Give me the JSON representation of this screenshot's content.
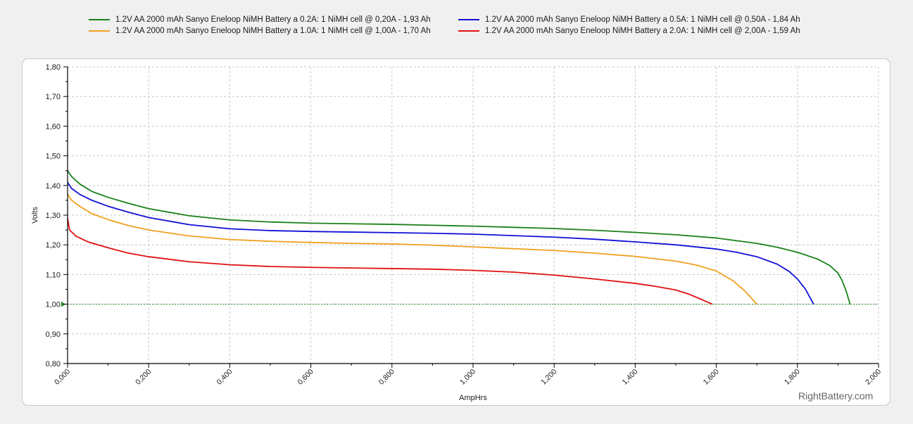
{
  "legend": [
    {
      "label": "1.2V AA 2000 mAh Sanyo Eneloop NiMH Battery a 0.2A: 1 NiMH cell @ 0,20A - 1,93 Ah",
      "color": "#1a801a"
    },
    {
      "label": "1.2V AA 2000 mAh Sanyo Eneloop NiMH Battery a 0.5A: 1 NiMH cell @ 0,50A - 1,84 Ah",
      "color": "#1010d8"
    },
    {
      "label": "1.2V AA 2000 mAh Sanyo Eneloop NiMH Battery a 1.0A: 1 NiMH cell @ 1,00A - 1,70 Ah",
      "color": "#f0a020"
    },
    {
      "label": "1.2V AA 2000 mAh Sanyo Eneloop NiMH Battery a 2.0A: 1 NiMH cell @ 2,00A - 1,59 Ah",
      "color": "#e01010"
    }
  ],
  "watermark": "RightBattery.com",
  "chart_data": {
    "type": "line",
    "xlabel": "AmpHrs",
    "ylabel": "Volts",
    "xlim": [
      0,
      2.0
    ],
    "ylim": [
      0.8,
      1.8
    ],
    "x_ticks": [
      "0,000",
      "0,200",
      "0,400",
      "0,600",
      "0,800",
      "1,000",
      "1,200",
      "1,400",
      "1,600",
      "1,800",
      "2,000"
    ],
    "y_ticks": [
      "0,80",
      "0,90",
      "1,00",
      "1,10",
      "1,20",
      "1,30",
      "1,40",
      "1,50",
      "1,60",
      "1,70",
      "1,80"
    ],
    "grid": true,
    "legend_position": "top",
    "reference_line": {
      "y": 1.0,
      "color": "#2e8b2e"
    },
    "series": [
      {
        "name": "1.2V AA 2000 mAh Sanyo Eneloop NiMH Battery a 0.2A: 1 NiMH cell @ 0,20A - 1,93 Ah",
        "color": "#1a801a",
        "x": [
          0,
          0.01,
          0.03,
          0.06,
          0.1,
          0.15,
          0.2,
          0.3,
          0.4,
          0.5,
          0.6,
          0.7,
          0.8,
          0.9,
          1.0,
          1.1,
          1.2,
          1.3,
          1.4,
          1.5,
          1.6,
          1.7,
          1.75,
          1.8,
          1.85,
          1.88,
          1.9,
          1.91,
          1.92,
          1.93
        ],
        "y": [
          1.45,
          1.43,
          1.405,
          1.38,
          1.36,
          1.34,
          1.322,
          1.298,
          1.284,
          1.277,
          1.273,
          1.271,
          1.269,
          1.266,
          1.263,
          1.259,
          1.255,
          1.249,
          1.242,
          1.234,
          1.223,
          1.205,
          1.192,
          1.175,
          1.152,
          1.13,
          1.105,
          1.08,
          1.045,
          1.0
        ]
      },
      {
        "name": "1.2V AA 2000 mAh Sanyo Eneloop NiMH Battery a 0.5A: 1 NiMH cell @ 0,50A - 1,84 Ah",
        "color": "#1010d8",
        "x": [
          0,
          0.01,
          0.03,
          0.06,
          0.1,
          0.15,
          0.2,
          0.3,
          0.4,
          0.5,
          0.6,
          0.7,
          0.8,
          0.9,
          1.0,
          1.1,
          1.2,
          1.3,
          1.4,
          1.5,
          1.6,
          1.65,
          1.7,
          1.75,
          1.78,
          1.8,
          1.82,
          1.83,
          1.84
        ],
        "y": [
          1.41,
          1.39,
          1.37,
          1.35,
          1.33,
          1.31,
          1.292,
          1.268,
          1.254,
          1.248,
          1.245,
          1.243,
          1.241,
          1.239,
          1.236,
          1.231,
          1.226,
          1.219,
          1.21,
          1.2,
          1.186,
          1.175,
          1.16,
          1.135,
          1.11,
          1.085,
          1.05,
          1.025,
          1.0
        ]
      },
      {
        "name": "1.2V AA 2000 mAh Sanyo Eneloop NiMH Battery a 1.0A: 1 NiMH cell @ 1,00A - 1,70 Ah",
        "color": "#f0a020",
        "x": [
          0,
          0.01,
          0.03,
          0.06,
          0.1,
          0.15,
          0.2,
          0.3,
          0.4,
          0.5,
          0.6,
          0.7,
          0.8,
          0.9,
          1.0,
          1.1,
          1.2,
          1.3,
          1.4,
          1.5,
          1.55,
          1.6,
          1.64,
          1.67,
          1.69,
          1.7
        ],
        "y": [
          1.37,
          1.35,
          1.33,
          1.305,
          1.285,
          1.265,
          1.25,
          1.23,
          1.218,
          1.212,
          1.208,
          1.205,
          1.203,
          1.199,
          1.193,
          1.187,
          1.181,
          1.172,
          1.161,
          1.145,
          1.132,
          1.112,
          1.08,
          1.045,
          1.015,
          1.0
        ]
      },
      {
        "name": "1.2V AA 2000 mAh Sanyo Eneloop NiMH Battery a 2.0A: 1 NiMH cell @ 2,00A - 1,59 Ah",
        "color": "#e01010",
        "x": [
          0,
          0.005,
          0.02,
          0.05,
          0.1,
          0.15,
          0.2,
          0.3,
          0.4,
          0.5,
          0.6,
          0.7,
          0.8,
          0.9,
          1.0,
          1.1,
          1.2,
          1.3,
          1.4,
          1.45,
          1.5,
          1.53,
          1.56,
          1.58,
          1.59
        ],
        "y": [
          1.29,
          1.25,
          1.23,
          1.21,
          1.19,
          1.172,
          1.16,
          1.143,
          1.133,
          1.127,
          1.124,
          1.122,
          1.12,
          1.118,
          1.114,
          1.108,
          1.098,
          1.085,
          1.07,
          1.06,
          1.048,
          1.035,
          1.018,
          1.006,
          1.0
        ]
      }
    ]
  }
}
